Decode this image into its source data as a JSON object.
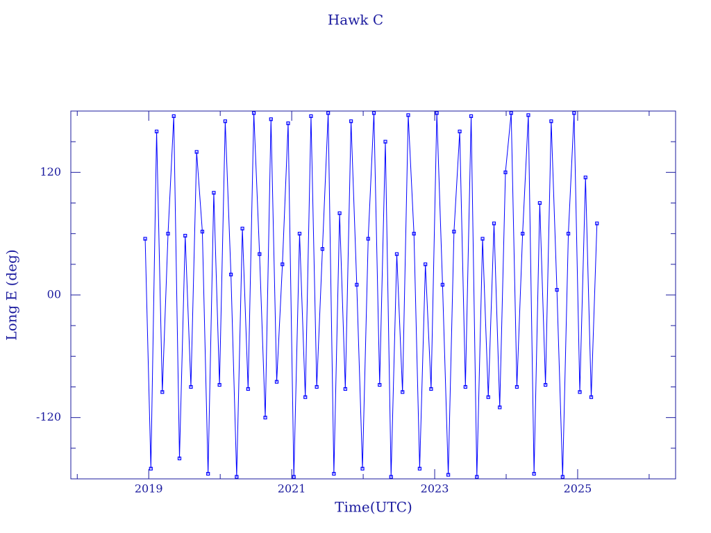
{
  "chart_data": {
    "type": "line",
    "title": "Hawk C",
    "x_label": "Time(UTC)",
    "y_label": "Long E (deg)",
    "x": [
      2018.95,
      2019.03,
      2019.11,
      2019.19,
      2019.27,
      2019.35,
      2019.43,
      2019.51,
      2019.59,
      2019.67,
      2019.75,
      2019.83,
      2019.91,
      2019.99,
      2020.07,
      2020.15,
      2020.23,
      2020.31,
      2020.39,
      2020.47,
      2020.55,
      2020.63,
      2020.71,
      2020.79,
      2020.87,
      2020.95,
      2021.03,
      2021.11,
      2021.19,
      2021.27,
      2021.35,
      2021.43,
      2021.51,
      2021.59,
      2021.67,
      2021.75,
      2021.83,
      2021.91,
      2021.99,
      2022.07,
      2022.15,
      2022.23,
      2022.31,
      2022.39,
      2022.47,
      2022.55,
      2022.63,
      2022.71,
      2022.79,
      2022.87,
      2022.95,
      2023.03,
      2023.11,
      2023.19,
      2023.27,
      2023.35,
      2023.43,
      2023.51,
      2023.59,
      2023.67,
      2023.75,
      2023.83,
      2023.91,
      2023.99,
      2024.07,
      2024.15,
      2024.23,
      2024.31,
      2024.39,
      2024.47,
      2024.55,
      2024.63,
      2024.71,
      2024.79,
      2024.87,
      2024.95,
      2025.03,
      2025.11,
      2025.19,
      2025.27
    ],
    "series": [
      {
        "color": "#0000ff",
        "values": [
          55,
          -170,
          160,
          -95,
          60,
          175,
          -160,
          58,
          -90,
          140,
          62,
          -175,
          100,
          -88,
          170,
          20,
          -178,
          65,
          -92,
          178,
          40,
          -120,
          172,
          -85,
          30,
          168,
          -178,
          60,
          -100,
          175,
          -90,
          45,
          178,
          -175,
          80,
          -92,
          170,
          10,
          -170,
          55,
          178,
          -88,
          150,
          -178,
          40,
          -95,
          176,
          60,
          -170,
          30,
          -92,
          178,
          10,
          -176,
          62,
          160,
          -90,
          175,
          -178,
          55,
          -100,
          70,
          -110,
          120,
          178,
          -90,
          60,
          176,
          -175,
          90,
          -88,
          170,
          5,
          -178,
          60,
          178,
          -95,
          115,
          -100,
          70
        ]
      }
    ],
    "xlim": [
      2017.91,
      2026.37
    ],
    "xticks": [
      2019,
      2021,
      2023,
      2025
    ],
    "xminor": [
      2018,
      2020,
      2022,
      2024,
      2026
    ],
    "ylim": [
      -180,
      180
    ],
    "yticks": [
      -120,
      {
        "value": 0,
        "label": "00"
      },
      120
    ],
    "yminor": [
      -150,
      -90,
      -60,
      -30,
      30,
      60,
      90,
      150
    ],
    "axis_color": "#1a1a9e"
  }
}
